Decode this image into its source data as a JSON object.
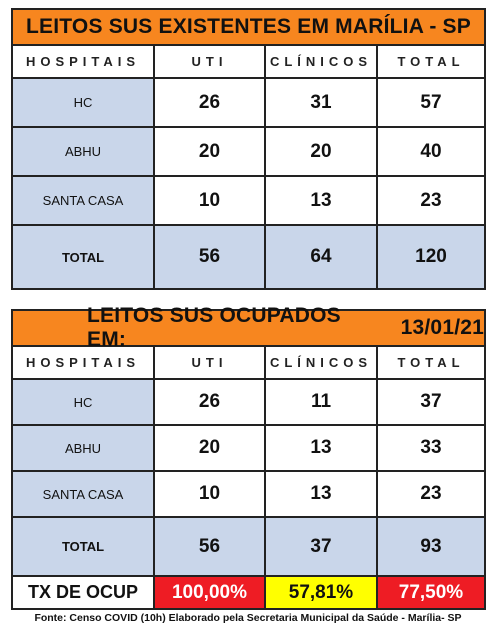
{
  "table1": {
    "title": "LEITOS SUS EXISTENTES EM MARÍLIA - SP",
    "headers": [
      "HOSPITAIS",
      "UTI",
      "CLÍNICOS",
      "TOTAL"
    ],
    "rows": [
      {
        "hospital": "HC",
        "uti": "26",
        "clinicos": "31",
        "total": "57"
      },
      {
        "hospital": "ABHU",
        "uti": "20",
        "clinicos": "20",
        "total": "40"
      },
      {
        "hospital": "SANTA CASA",
        "uti": "10",
        "clinicos": "13",
        "total": "23"
      },
      {
        "hospital": "TOTAL",
        "uti": "56",
        "clinicos": "64",
        "total": "120"
      }
    ]
  },
  "table2": {
    "title": "LEITOS SUS OCUPADOS EM:",
    "date": "13/01/21",
    "headers": [
      "HOSPITAIS",
      "UTI",
      "CLÍNICOS",
      "TOTAL"
    ],
    "rows": [
      {
        "hospital": "HC",
        "uti": "26",
        "clinicos": "11",
        "total": "37"
      },
      {
        "hospital": "ABHU",
        "uti": "20",
        "clinicos": "13",
        "total": "33"
      },
      {
        "hospital": "SANTA CASA",
        "uti": "10",
        "clinicos": "13",
        "total": "23"
      },
      {
        "hospital": "TOTAL",
        "uti": "56",
        "clinicos": "37",
        "total": "93"
      }
    ],
    "occupancy": {
      "label": "TX DE OCUP",
      "uti": "100,00%",
      "clinicos": "57,81%",
      "total": "77,50%"
    }
  },
  "footer": "Fonte: Censo COVID (10h) Elaborado pela Secretaria Municipal da Saúde - Marília- SP",
  "colors": {
    "title_bg": "#f7861f",
    "label_bg": "#c9d6ea",
    "high": "#ee1c24",
    "medium": "#ffff00"
  }
}
